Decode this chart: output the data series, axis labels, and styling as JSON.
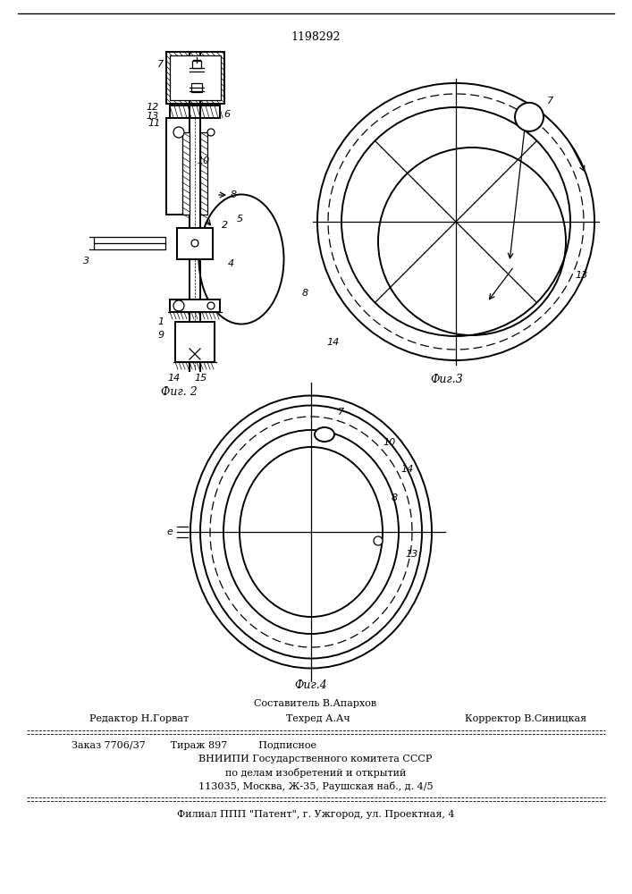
{
  "patent_number": "1198292",
  "fig2_caption": "Фиг. 2",
  "fig3_caption": "Фиг.3",
  "fig4_caption": "Фиг.4",
  "footer_line1": "Составитель В.Апархов",
  "footer_line2_left": "Редактор Н.Горват",
  "footer_line2_mid": "Техред А.Ач",
  "footer_line2_right": "Корректор В.Синицкая",
  "footer_line3": "Заказ 7706/37        Тираж 897          Подписное",
  "footer_line4": "ВНИИПИ Государственного комитета СССР",
  "footer_line5": "по делам изобретений и открытий",
  "footer_line6": "113035, Москва, Ж-35, Раушская наб., д. 4/5",
  "footer_line7": "Филиал ППП \"Патент\", г. Ужгород, ул. Проектная, 4",
  "bg_color": "#ffffff",
  "line_color": "#000000"
}
